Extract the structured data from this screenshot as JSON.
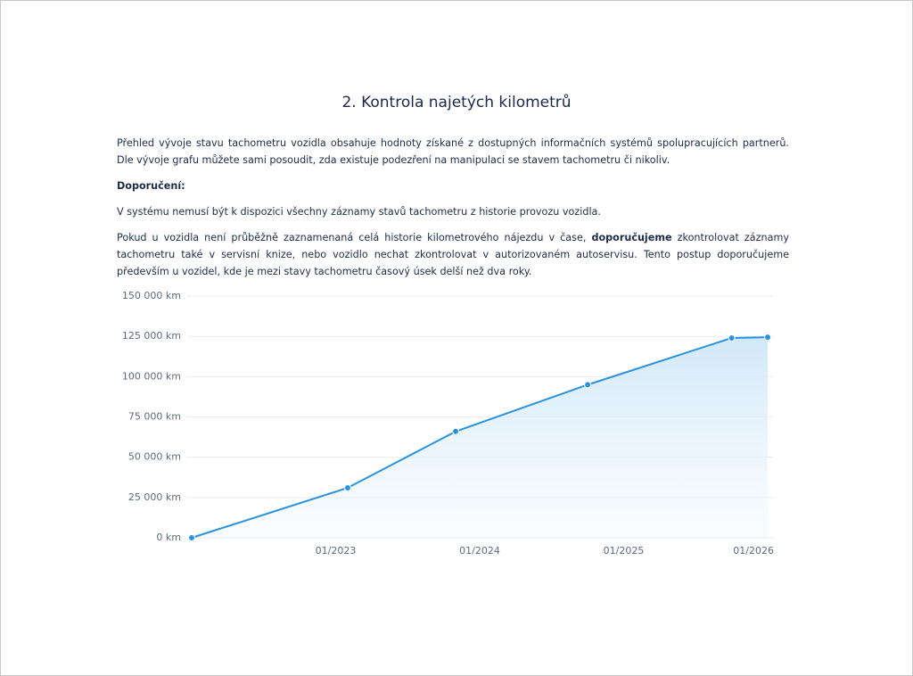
{
  "header": {
    "title": "2. Kontrola najetých kilometrů"
  },
  "paragraphs": [
    [
      "Přehled vývoje stavu tachometru vozidla obsahuje hodnoty získané z dostupných informačních systémů spolupracujících partnerů. Dle vývoje grafu můžete sami posoudit, zda existuje podezření na manipulaci se stavem tachometru či nikoliv."
    ],
    [
      "Doporučení:"
    ],
    [
      "V systému nemusí být k dispozici všechny záznamy stavů tachometru z historie provozu vozidla."
    ],
    [
      "Pokud u vozidla není průběžně zaznamenaná celá historie kilometrového nájezdu v čase, ",
      "doporučujeme",
      " zkontrolovat záznamy tachometru také v servisní knize, nebo vozidlo nechat zkontrolovat v autorizovaném autoservisu. Tento postup doporučujeme především u vozidel, kde je mezi stavy tachometru časový úsek delší než dva roky."
    ]
  ],
  "chart_data": {
    "type": "area",
    "x": [
      "01/2022",
      "02/2023",
      "11/2023",
      "10/2024",
      "10/2025",
      "01/2026"
    ],
    "values": [
      0,
      31000,
      66000,
      95000,
      124000,
      124500
    ],
    "color": "#2a93df",
    "xlim": [
      "01/2022",
      "01/2026"
    ],
    "xticks": [
      "01/2023",
      "01/2024",
      "01/2025",
      "01/2026"
    ],
    "ylim": [
      0,
      150000
    ],
    "yticks": [
      {
        "value": 0,
        "label": "0 km"
      },
      {
        "value": 25000,
        "label": "25 000 km"
      },
      {
        "value": 50000,
        "label": "50 000 km"
      },
      {
        "value": 75000,
        "label": "75 000 km"
      },
      {
        "value": 100000,
        "label": "100 000 km"
      },
      {
        "value": 125000,
        "label": "125 000 km"
      },
      {
        "value": 150000,
        "label": "150 000 km"
      }
    ],
    "grid": true
  }
}
